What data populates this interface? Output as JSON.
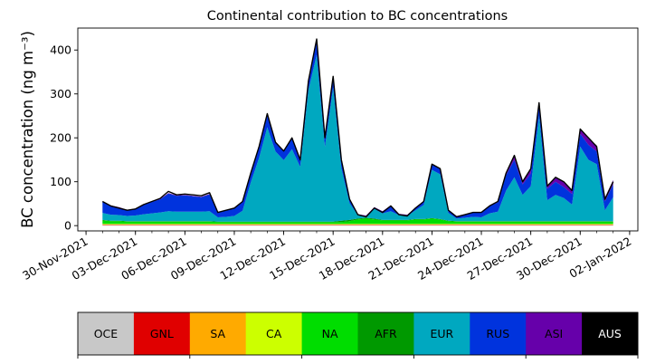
{
  "chart_data": {
    "type": "area",
    "title": "Continental contribution to BC concentrations",
    "ylabel": "BC concentration (ng m⁻³)",
    "xlabel": "",
    "xlim": [
      "2021-11-29T12:00",
      "2022-01-02T12:00"
    ],
    "ylim": [
      -12,
      450
    ],
    "y_ticks": [
      0,
      100,
      200,
      300,
      400
    ],
    "x_ticks": [
      "2021-11-30",
      "2021-12-03",
      "2021-12-06",
      "2021-12-09",
      "2021-12-12",
      "2021-12-15",
      "2021-12-18",
      "2021-12-21",
      "2021-12-24",
      "2021-12-27",
      "2021-12-30",
      "2022-01-02"
    ],
    "x_tick_labels": [
      "30-Nov-2021",
      "03-Dec-2021",
      "06-Dec-2021",
      "09-Dec-2021",
      "12-Dec-2021",
      "15-Dec-2021",
      "18-Dec-2021",
      "21-Dec-2021",
      "24-Dec-2021",
      "27-Dec-2021",
      "30-Dec-2021",
      "02-Jan-2022"
    ],
    "grid": false,
    "stacked": true,
    "x": [
      "2021-12-01T00:00",
      "2021-12-01T12:00",
      "2021-12-02T00:00",
      "2021-12-02T12:00",
      "2021-12-03T00:00",
      "2021-12-03T12:00",
      "2021-12-04T00:00",
      "2021-12-04T12:00",
      "2021-12-05T00:00",
      "2021-12-05T12:00",
      "2021-12-06T00:00",
      "2021-12-06T12:00",
      "2021-12-07T00:00",
      "2021-12-07T12:00",
      "2021-12-08T00:00",
      "2021-12-08T12:00",
      "2021-12-09T00:00",
      "2021-12-09T12:00",
      "2021-12-10T00:00",
      "2021-12-10T12:00",
      "2021-12-11T00:00",
      "2021-12-11T12:00",
      "2021-12-12T00:00",
      "2021-12-12T12:00",
      "2021-12-13T00:00",
      "2021-12-13T12:00",
      "2021-12-14T00:00",
      "2021-12-14T12:00",
      "2021-12-15T00:00",
      "2021-12-15T12:00",
      "2021-12-16T00:00",
      "2021-12-16T12:00",
      "2021-12-17T00:00",
      "2021-12-17T12:00",
      "2021-12-18T00:00",
      "2021-12-18T12:00",
      "2021-12-19T00:00",
      "2021-12-19T12:00",
      "2021-12-20T00:00",
      "2021-12-20T12:00",
      "2021-12-21T00:00",
      "2021-12-21T12:00",
      "2021-12-22T00:00",
      "2021-12-22T12:00",
      "2021-12-23T00:00",
      "2021-12-23T12:00",
      "2021-12-24T00:00",
      "2021-12-24T12:00",
      "2021-12-25T00:00",
      "2021-12-25T12:00",
      "2021-12-26T00:00",
      "2021-12-26T12:00",
      "2021-12-27T00:00",
      "2021-12-27T12:00",
      "2021-12-28T00:00",
      "2021-12-28T12:00",
      "2021-12-29T00:00",
      "2021-12-29T12:00",
      "2021-12-30T00:00",
      "2021-12-30T12:00",
      "2021-12-31T00:00",
      "2021-12-31T12:00",
      "2022-01-01T00:00"
    ],
    "total": [
      55,
      45,
      40,
      35,
      38,
      48,
      55,
      62,
      78,
      70,
      72,
      70,
      68,
      75,
      30,
      35,
      40,
      55,
      120,
      180,
      255,
      190,
      170,
      200,
      150,
      330,
      425,
      200,
      340,
      150,
      60,
      25,
      20,
      40,
      30,
      45,
      25,
      22,
      40,
      55,
      140,
      130,
      35,
      20,
      25,
      30,
      30,
      45,
      55,
      120,
      160,
      100,
      130,
      280,
      90,
      110,
      100,
      80,
      220,
      200,
      180,
      60,
      100
    ],
    "series": [
      {
        "name": "OCE",
        "color": "#c8c8c8",
        "values": [
          1,
          1,
          1,
          1,
          1,
          1,
          1,
          1,
          1,
          1,
          1,
          1,
          1,
          1,
          1,
          1,
          1,
          1,
          1,
          1,
          1,
          1,
          1,
          1,
          1,
          1,
          1,
          1,
          1,
          1,
          1,
          1,
          1,
          1,
          1,
          1,
          1,
          1,
          1,
          1,
          1,
          1,
          1,
          1,
          1,
          1,
          1,
          1,
          1,
          1,
          1,
          1,
          1,
          1,
          1,
          1,
          1,
          1,
          1,
          1,
          1,
          1,
          1
        ]
      },
      {
        "name": "GNL",
        "color": "#e00000",
        "values": [
          1,
          1,
          1,
          1,
          1,
          1,
          1,
          1,
          1,
          1,
          1,
          1,
          1,
          1,
          1,
          1,
          1,
          1,
          1,
          1,
          1,
          1,
          1,
          1,
          1,
          1,
          1,
          1,
          1,
          1,
          1,
          1,
          1,
          1,
          1,
          1,
          1,
          1,
          1,
          1,
          1,
          1,
          1,
          1,
          1,
          1,
          1,
          1,
          1,
          1,
          1,
          1,
          1,
          1,
          1,
          1,
          1,
          1,
          1,
          1,
          1,
          1,
          1
        ]
      },
      {
        "name": "SA",
        "color": "#ffaa00",
        "values": [
          1,
          1,
          1,
          1,
          1,
          1,
          1,
          1,
          1,
          1,
          1,
          1,
          1,
          1,
          1,
          1,
          1,
          1,
          1,
          1,
          1,
          1,
          1,
          1,
          1,
          1,
          1,
          1,
          1,
          1,
          1,
          1,
          1,
          1,
          1,
          1,
          1,
          1,
          1,
          1,
          1,
          1,
          1,
          1,
          1,
          1,
          1,
          1,
          1,
          1,
          1,
          1,
          1,
          1,
          1,
          1,
          1,
          1,
          1,
          1,
          1,
          1,
          1
        ]
      },
      {
        "name": "CA",
        "color": "#ccff00",
        "values": [
          1,
          1,
          1,
          1,
          1,
          1,
          1,
          1,
          1,
          1,
          1,
          1,
          1,
          1,
          1,
          1,
          1,
          1,
          1,
          1,
          1,
          1,
          1,
          1,
          1,
          1,
          1,
          1,
          1,
          1,
          1,
          1,
          1,
          1,
          1,
          1,
          1,
          1,
          1,
          1,
          1,
          1,
          1,
          1,
          1,
          1,
          1,
          1,
          1,
          1,
          1,
          1,
          1,
          1,
          1,
          1,
          1,
          1,
          1,
          1,
          1,
          1,
          1
        ]
      },
      {
        "name": "NA",
        "color": "#00dd00",
        "values": [
          8,
          6,
          6,
          5,
          5,
          5,
          5,
          5,
          5,
          5,
          5,
          5,
          5,
          5,
          4,
          4,
          4,
          4,
          4,
          4,
          4,
          4,
          4,
          4,
          4,
          4,
          4,
          4,
          4,
          4,
          6,
          10,
          12,
          10,
          8,
          8,
          8,
          8,
          10,
          10,
          12,
          10,
          6,
          5,
          5,
          5,
          5,
          5,
          5,
          5,
          5,
          5,
          5,
          5,
          5,
          5,
          5,
          5,
          5,
          5,
          5,
          5,
          5
        ]
      },
      {
        "name": "AFR",
        "color": "#009900",
        "values": [
          1,
          1,
          1,
          1,
          1,
          1,
          1,
          1,
          1,
          1,
          1,
          1,
          1,
          1,
          1,
          1,
          1,
          1,
          1,
          1,
          1,
          1,
          1,
          1,
          1,
          1,
          1,
          1,
          1,
          3,
          3,
          2,
          2,
          2,
          1,
          1,
          1,
          1,
          1,
          1,
          1,
          1,
          1,
          1,
          1,
          1,
          1,
          1,
          1,
          1,
          1,
          1,
          1,
          1,
          1,
          1,
          1,
          1,
          1,
          1,
          1,
          1,
          1
        ]
      },
      {
        "name": "EUR",
        "color": "#00a8c0",
        "values": [
          16,
          14,
          13,
          12,
          13,
          16,
          18,
          20,
          23,
          22,
          22,
          22,
          22,
          23,
          10,
          11,
          13,
          25,
          90,
          145,
          215,
          160,
          140,
          165,
          125,
          300,
          380,
          170,
          305,
          120,
          38,
          8,
          3,
          22,
          15,
          20,
          11,
          9,
          20,
          32,
          110,
          102,
          18,
          6,
          8,
          10,
          9,
          18,
          22,
          70,
          100,
          60,
          80,
          240,
          48,
          60,
          53,
          38,
          170,
          140,
          130,
          25,
          55
        ]
      },
      {
        "name": "RUS",
        "color": "#0033dd",
        "values": [
          25,
          20,
          17,
          13,
          15,
          21,
          26,
          30,
          40,
          36,
          37,
          35,
          33,
          38,
          11,
          14,
          17,
          21,
          20,
          25,
          30,
          20,
          20,
          25,
          16,
          21,
          30,
          20,
          25,
          20,
          10,
          1,
          1,
          3,
          4,
          12,
          2,
          2,
          5,
          8,
          12,
          12,
          6,
          5,
          7,
          10,
          11,
          16,
          21,
          35,
          40,
          24,
          29,
          27,
          26,
          30,
          25,
          24,
          29,
          34,
          29,
          20,
          29
        ]
      },
      {
        "name": "ASI",
        "color": "#6600aa",
        "values": [
          1,
          1,
          1,
          1,
          1,
          1,
          1,
          1,
          1,
          1,
          1,
          1,
          1,
          1,
          1,
          1,
          1,
          1,
          1,
          1,
          1,
          1,
          1,
          1,
          1,
          1,
          7,
          1,
          1,
          1,
          1,
          1,
          1,
          1,
          1,
          1,
          1,
          1,
          1,
          1,
          1,
          1,
          1,
          1,
          1,
          1,
          1,
          1,
          1,
          5,
          10,
          6,
          11,
          3,
          6,
          10,
          12,
          8,
          11,
          15,
          14,
          9,
          10
        ]
      },
      {
        "name": "AUS",
        "color": "#000000",
        "values": [
          0,
          0,
          0,
          0,
          0,
          0,
          0,
          0,
          0,
          0,
          0,
          0,
          0,
          0,
          0,
          0,
          0,
          0,
          0,
          0,
          0,
          0,
          0,
          0,
          0,
          0,
          0,
          0,
          0,
          0,
          0,
          0,
          0,
          0,
          0,
          0,
          0,
          0,
          0,
          0,
          0,
          0,
          0,
          0,
          0,
          0,
          0,
          0,
          0,
          0,
          0,
          0,
          0,
          0,
          0,
          0,
          0,
          0,
          0,
          0,
          0,
          0,
          0
        ]
      }
    ],
    "colorbar": [
      {
        "label": "OCE",
        "color": "#c8c8c8",
        "text_color": "#000000"
      },
      {
        "label": "GNL",
        "color": "#e00000",
        "text_color": "#000000"
      },
      {
        "label": "SA",
        "color": "#ffaa00",
        "text_color": "#000000"
      },
      {
        "label": "CA",
        "color": "#ccff00",
        "text_color": "#000000"
      },
      {
        "label": "NA",
        "color": "#00dd00",
        "text_color": "#000000"
      },
      {
        "label": "AFR",
        "color": "#009900",
        "text_color": "#000000"
      },
      {
        "label": "EUR",
        "color": "#00a8c0",
        "text_color": "#000000"
      },
      {
        "label": "RUS",
        "color": "#0033dd",
        "text_color": "#000000"
      },
      {
        "label": "ASI",
        "color": "#6600aa",
        "text_color": "#000000"
      },
      {
        "label": "AUS",
        "color": "#000000",
        "text_color": "#ffffff"
      }
    ]
  }
}
